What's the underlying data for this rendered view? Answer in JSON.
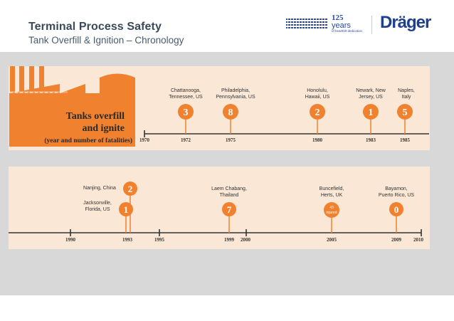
{
  "header": {
    "title": "Terminal Process Safety",
    "subtitle": "Tank Overfill & Ignition – Chronology"
  },
  "logo": {
    "years_number": "125",
    "years_word": "years",
    "tagline": "of heartfelt dedication",
    "brand": "Dräger"
  },
  "colors": {
    "accent": "#f0812e",
    "panel": "#fbe7d6",
    "band": "#d8d8d8"
  },
  "heading": {
    "line1": "Tanks overfill",
    "line2": "and ignite",
    "line3": "(year and number of fatalities)"
  },
  "timeline1": {
    "years": [
      "1970",
      "1972",
      "1975",
      "1980",
      "1983",
      "1985"
    ],
    "events": [
      {
        "loc1": "Chattanooga,",
        "loc2": "Tennessee, US",
        "count": "3"
      },
      {
        "loc1": "Philadelphia,",
        "loc2": "Pennsylvania, US",
        "count": "8"
      },
      {
        "loc1": "Honolulu,",
        "loc2": "Hawaii, US",
        "count": "2"
      },
      {
        "loc1": "Newark, New",
        "loc2": "Jersey, US",
        "count": "1"
      },
      {
        "loc1": "Naples,",
        "loc2": "Italy",
        "count": "5"
      }
    ]
  },
  "timeline2": {
    "years": [
      "1990",
      "1993",
      "1995",
      "1999",
      "2000",
      "2005",
      "2009",
      "2010"
    ],
    "events": [
      {
        "loc1": "Nanjing, China",
        "count": "2"
      },
      {
        "loc1": "Jacksonville,",
        "loc2": "Florida, US",
        "count": "1"
      },
      {
        "loc1": "Laem Chabang,",
        "loc2": "Thailand",
        "count": "7"
      },
      {
        "loc1": "Buncefield,",
        "loc2": "Herts, UK",
        "count": "43",
        "note": "injured"
      },
      {
        "loc1": "Bayamon,",
        "loc2": "Puerto Rico, US",
        "count": "0"
      }
    ]
  }
}
